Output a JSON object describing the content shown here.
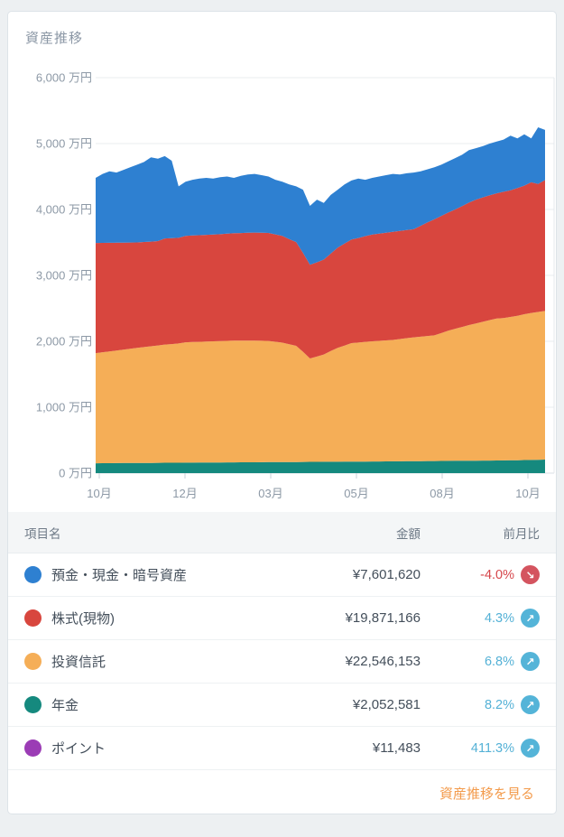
{
  "card": {
    "title": "資産推移",
    "footer_link": "資産推移を見る"
  },
  "colors": {
    "link_accent": "#f39b4c",
    "positive_text": "#54b1d6",
    "negative_text": "#d6464b",
    "badge_up": "#54b4d8",
    "badge_down": "#d4545f"
  },
  "icons": {
    "up_arrow": "↗",
    "down_arrow": "↘"
  },
  "table": {
    "headers": {
      "name": "項目名",
      "amount": "金額",
      "mom": "前月比"
    },
    "rows": [
      {
        "label": "預金・現金・暗号資産",
        "amount": "¥7,601,620",
        "change": "-4.0%",
        "direction": "down",
        "color": "#2e80d1"
      },
      {
        "label": "株式(現物)",
        "amount": "¥19,871,166",
        "change": "4.3%",
        "direction": "up",
        "color": "#d8463e"
      },
      {
        "label": "投資信託",
        "amount": "¥22,546,153",
        "change": "6.8%",
        "direction": "up",
        "color": "#f5ae57"
      },
      {
        "label": "年金",
        "amount": "¥2,052,581",
        "change": "8.2%",
        "direction": "up",
        "color": "#15897e"
      },
      {
        "label": "ポイント",
        "amount": "¥11,483",
        "change": "411.3%",
        "direction": "up",
        "color": "#9b3cb5"
      }
    ]
  },
  "chart_data": {
    "type": "area",
    "stacked": true,
    "title": "資産推移",
    "unit": "万円 (10,000 JPY)",
    "ylim": [
      0,
      6000
    ],
    "grid": true,
    "legend_position": "table-below",
    "y_ticks": [
      "6,000 万円",
      "5,000 万円",
      "4,000 万円",
      "3,000 万円",
      "2,000 万円",
      "1,000 万円",
      "0 万円"
    ],
    "x_ticks": [
      "10月",
      "12月",
      "03月",
      "05月",
      "08月",
      "10月"
    ],
    "series": [
      {
        "key": "pension",
        "name": "年金",
        "color": "#15897e",
        "values": [
          150,
          151,
          151,
          152,
          153,
          153,
          154,
          155,
          155,
          156,
          157,
          157,
          158,
          159,
          159,
          160,
          161,
          161,
          162,
          163,
          163,
          164,
          165,
          165,
          166,
          167,
          167,
          168,
          169,
          169,
          170,
          171,
          171,
          172,
          173,
          173,
          174,
          175,
          175,
          176,
          177,
          177,
          178,
          179,
          180,
          181,
          182,
          182,
          183,
          184,
          185,
          186,
          187,
          187,
          188,
          189,
          190,
          191,
          192,
          193,
          195,
          196,
          198,
          200,
          202,
          205
        ]
      },
      {
        "key": "mutual-funds",
        "name": "投資信託",
        "color": "#f5ae57",
        "values": [
          1671,
          1683,
          1695,
          1707,
          1719,
          1733,
          1746,
          1758,
          1769,
          1781,
          1793,
          1801,
          1809,
          1826,
          1830,
          1832,
          1835,
          1839,
          1841,
          1844,
          1847,
          1846,
          1845,
          1845,
          1842,
          1838,
          1826,
          1812,
          1786,
          1763,
          1671,
          1569,
          1597,
          1628,
          1680,
          1727,
          1762,
          1797,
          1806,
          1816,
          1823,
          1830,
          1836,
          1841,
          1854,
          1867,
          1878,
          1888,
          1898,
          1906,
          1940,
          1974,
          2003,
          2031,
          2058,
          2081,
          2106,
          2131,
          2153,
          2161,
          2175,
          2192,
          2213,
          2230,
          2243,
          2255
        ]
      },
      {
        "key": "stocks",
        "name": "株式(現物)",
        "color": "#d8463e",
        "values": [
          1671,
          1659,
          1648,
          1637,
          1625,
          1612,
          1600,
          1594,
          1589,
          1583,
          1610,
          1607,
          1603,
          1615,
          1616,
          1617,
          1619,
          1620,
          1622,
          1626,
          1630,
          1633,
          1637,
          1640,
          1639,
          1639,
          1629,
          1620,
          1595,
          1573,
          1500,
          1420,
          1430,
          1440,
          1477,
          1520,
          1548,
          1573,
          1586,
          1604,
          1620,
          1627,
          1634,
          1640,
          1640,
          1640,
          1640,
          1682,
          1723,
          1760,
          1778,
          1794,
          1810,
          1834,
          1858,
          1880,
          1887,
          1894,
          1900,
          1914,
          1920,
          1936,
          1950,
          1983,
          1941,
          1987
        ]
      },
      {
        "key": "deposits",
        "name": "預金・現金・暗号資産",
        "color": "#2e80d1",
        "values": [
          988,
          1047,
          1086,
          1064,
          1103,
          1142,
          1180,
          1213,
          1277,
          1250,
          1250,
          1175,
          780,
          820,
          845,
          861,
          865,
          850,
          865,
          867,
          840,
          867,
          883,
          890,
          873,
          856,
          828,
          820,
          830,
          845,
          959,
          895,
          952,
          860,
          890,
          880,
          896,
          895,
          903,
          854,
          860,
          866,
          872,
          880,
          856,
          862,
          860,
          828,
          806,
          790,
          777,
          776,
          780,
          778,
          796,
          780,
          777,
          784,
          785,
          792,
          830,
          756,
          779,
          667,
          860,
          760
        ]
      }
    ]
  }
}
